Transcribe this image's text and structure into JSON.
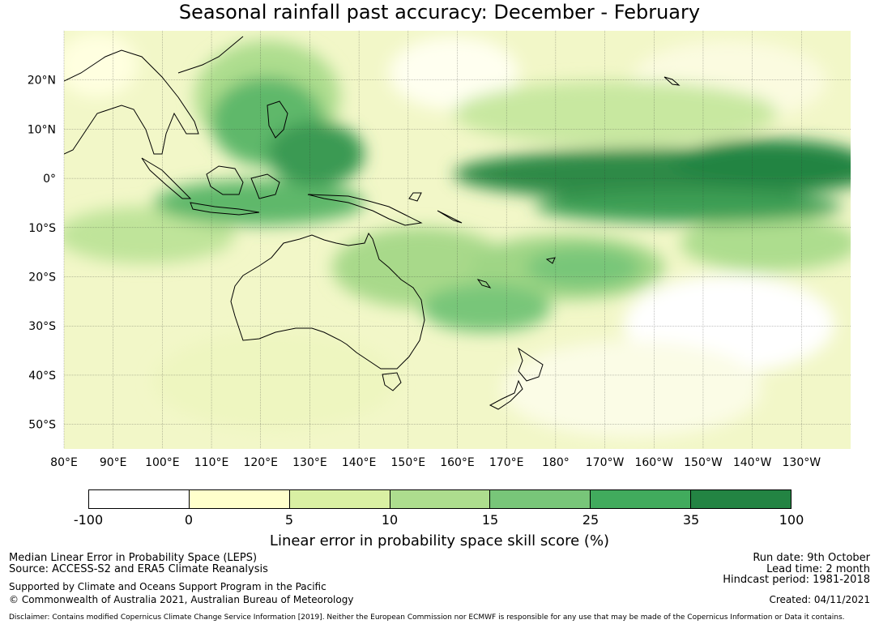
{
  "title": "Seasonal rainfall past accuracy: December - February",
  "map": {
    "lat_labels": [
      "20°N",
      "10°N",
      "0°",
      "10°S",
      "20°S",
      "30°S",
      "40°S",
      "50°S"
    ],
    "lon_labels": [
      "80°E",
      "90°E",
      "100°E",
      "110°E",
      "120°E",
      "130°E",
      "140°E",
      "150°E",
      "160°E",
      "170°E",
      "180°",
      "170°W",
      "160°W",
      "150°W",
      "140°W",
      "130°W"
    ],
    "lat_values": [
      20,
      10,
      0,
      -10,
      -20,
      -30,
      -40,
      -50
    ],
    "lon_values": [
      80,
      90,
      100,
      110,
      120,
      130,
      140,
      150,
      160,
      170,
      180,
      190,
      200,
      210,
      220,
      230
    ],
    "extent": {
      "lon_min": 80,
      "lon_max": 240,
      "lat_min": -55,
      "lat_max": 30
    }
  },
  "colorbar": {
    "ticks": [
      "-100",
      "0",
      "5",
      "10",
      "15",
      "25",
      "35",
      "100"
    ],
    "colors": [
      "#ffffff",
      "#ffffcc",
      "#d9f0a3",
      "#addd8e",
      "#78c679",
      "#41ab5d",
      "#238443"
    ],
    "label": "Linear error in probability space skill score (%)"
  },
  "footer": {
    "line1": "Median Linear Error in Probability Space (LEPS)",
    "line2": "Source: ACCESS-S2 and ERA5 Climate Reanalysis",
    "line3": "Supported by Climate and Oceans Support Program in the Pacific",
    "line4": "© Commonwealth of Australia 2021, Australian Bureau of Meteorology",
    "run_date": "Run date: 9th October",
    "lead_time": "Lead time: 2 month",
    "hindcast": "Hindcast period: 1981-2018",
    "created": "Created: 04/11/2021",
    "disclaimer": "Disclaimer: Contains modified Copernicus Climate Change Service Information [2019]. Neither the European Commission nor ECMWF is responsible for any use that may be made of the Copernicus Information or Data it contains."
  }
}
